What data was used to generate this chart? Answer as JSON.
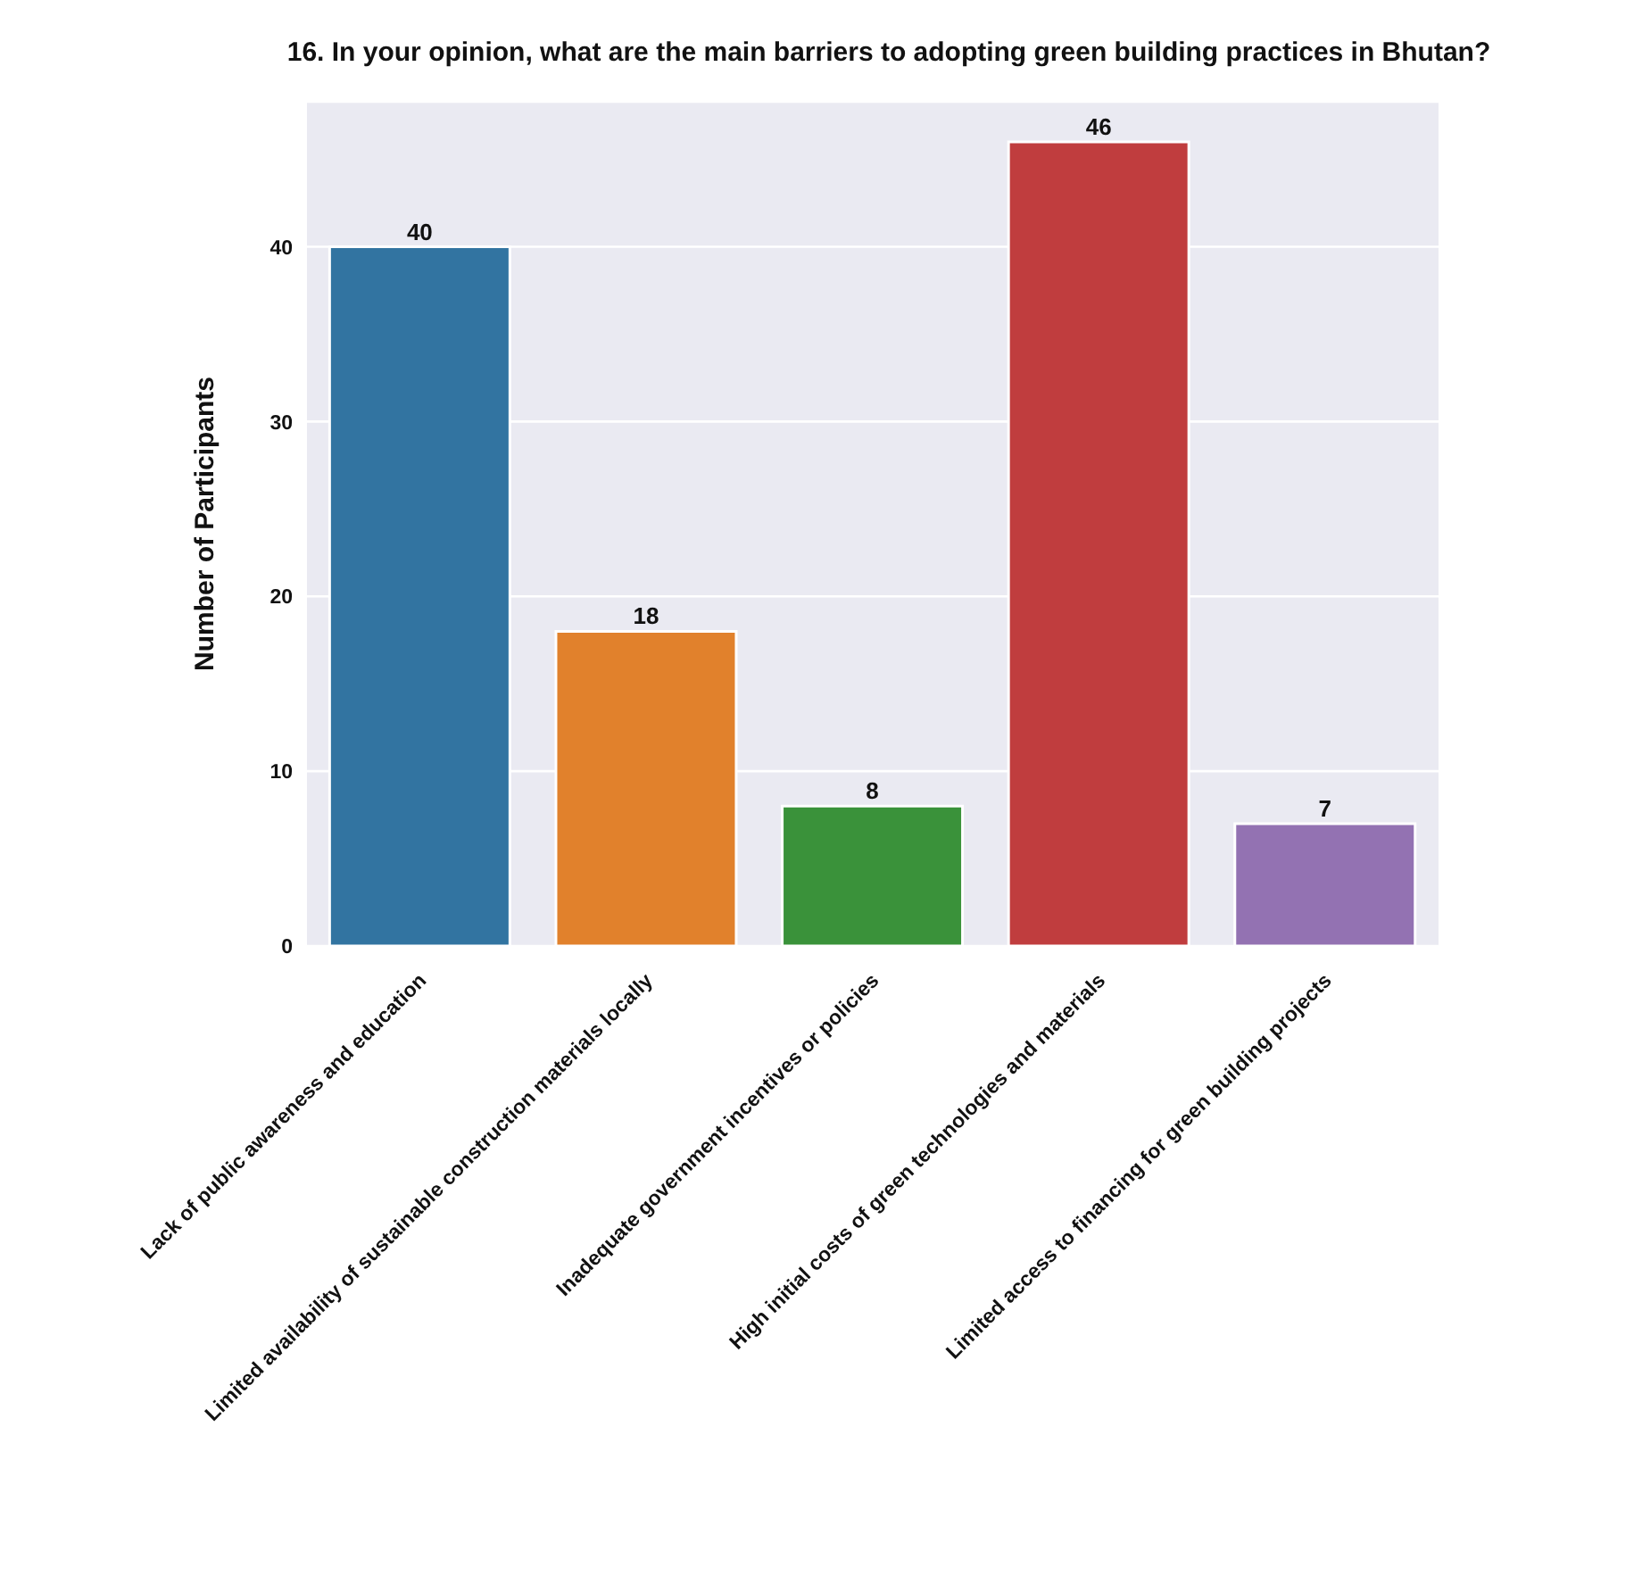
{
  "chart_data": {
    "type": "bar",
    "title": "16. In your opinion, what are the main barriers to adopting green building practices in Bhutan?",
    "ylabel": "Number of Participants",
    "categories": [
      "Lack of public awareness and education",
      "Limited availability of sustainable construction materials locally",
      "Inadequate government incentives or policies",
      "High initial costs of green technologies and materials",
      "Limited access to financing for green building projects"
    ],
    "values": [
      40,
      18,
      8,
      46,
      7
    ],
    "colors": [
      "#3274a1",
      "#e1812c",
      "#3a923a",
      "#c03d3e",
      "#9372b2"
    ],
    "ylim": [
      0,
      48.3
    ],
    "yticks": [
      0,
      10,
      20,
      30,
      40
    ],
    "grid": "y",
    "data_labels": true
  }
}
